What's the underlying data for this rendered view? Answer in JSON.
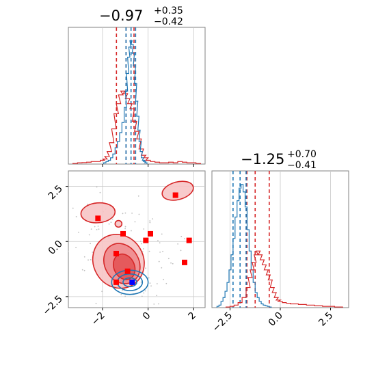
{
  "chart_data": {
    "type": "corner",
    "colors": {
      "red": "#d62728",
      "blue": "#1f77b4",
      "red_fill": "#f4b6b8",
      "marker_blue": "#0000ff",
      "marker_red": "#ff0000"
    },
    "grid": true,
    "panels": {
      "p1_hist": {
        "type": "histogram",
        "title": {
          "main": "−0.97",
          "sup": "+0.35",
          "sub": "−0.42"
        },
        "xlim": [
          -3.5,
          2.5
        ],
        "xticks": [
          -2,
          0,
          2
        ],
        "quantile_lines": {
          "red": [
            -1.39,
            -0.97,
            -0.62
          ],
          "blue": [
            -0.97,
            -0.75,
            -0.55
          ]
        },
        "series": [
          {
            "color": "red",
            "x": [
              -3.2,
              -3.0,
              -2.8,
              -2.6,
              -2.4,
              -2.2,
              -2.0,
              -1.9,
              -1.8,
              -1.7,
              -1.6,
              -1.5,
              -1.4,
              -1.3,
              -1.2,
              -1.1,
              -1.0,
              -0.9,
              -0.8,
              -0.7,
              -0.6,
              -0.5,
              -0.4,
              -0.3,
              -0.2,
              -0.1,
              0.0,
              0.2,
              0.4,
              0.6,
              0.8,
              1.0,
              1.2,
              1.4,
              1.6,
              1.8,
              2.0,
              2.2
            ],
            "y": [
              0.005,
              0.01,
              0.012,
              0.015,
              0.02,
              0.02,
              0.03,
              0.04,
              0.06,
              0.1,
              0.17,
              0.28,
              0.4,
              0.48,
              0.55,
              0.58,
              0.56,
              0.52,
              0.48,
              0.44,
              0.34,
              0.26,
              0.2,
              0.12,
              0.07,
              0.05,
              0.03,
              0.02,
              0.015,
              0.01,
              0.01,
              0.015,
              0.01,
              0.02,
              0.015,
              0.01,
              0.01,
              0.005
            ]
          },
          {
            "color": "blue",
            "x": [
              -1.9,
              -1.8,
              -1.7,
              -1.6,
              -1.5,
              -1.4,
              -1.3,
              -1.2,
              -1.1,
              -1.0,
              -0.95,
              -0.9,
              -0.85,
              -0.8,
              -0.75,
              -0.7,
              -0.65,
              -0.6,
              -0.55,
              -0.5,
              -0.45,
              -0.4,
              -0.35,
              -0.3,
              -0.25,
              -0.2,
              -0.15,
              -0.1
            ],
            "y": [
              0.01,
              0.02,
              0.03,
              0.05,
              0.08,
              0.13,
              0.18,
              0.25,
              0.33,
              0.45,
              0.58,
              0.72,
              0.85,
              0.93,
              0.98,
              0.95,
              0.88,
              0.78,
              0.64,
              0.5,
              0.38,
              0.27,
              0.18,
              0.1,
              0.05,
              0.03,
              0.02,
              0.01
            ]
          }
        ]
      },
      "p2_hist": {
        "type": "histogram",
        "title": {
          "main": "−1.25",
          "sup": "+0.70",
          "sub": "−0.41"
        },
        "xlim": [
          -3.4,
          3.4
        ],
        "xticks": [
          -2.5,
          0.0,
          2.5
        ],
        "xtick_labels": [
          "−2.5",
          "0.0",
          "2.5"
        ],
        "quantile_lines": {
          "red": [
            -1.66,
            -1.25,
            -0.55
          ],
          "blue": [
            -2.35,
            -2.0,
            -1.7
          ]
        },
        "series": [
          {
            "color": "blue",
            "x": [
              -3.1,
              -3.0,
              -2.9,
              -2.8,
              -2.7,
              -2.6,
              -2.5,
              -2.4,
              -2.3,
              -2.2,
              -2.1,
              -2.0,
              -1.9,
              -1.8,
              -1.7,
              -1.6,
              -1.5,
              -1.4,
              -1.3,
              -1.2,
              -1.1,
              -1.0,
              -0.9,
              -0.8,
              -0.7,
              -0.6,
              -0.5
            ],
            "y": [
              0.01,
              0.02,
              0.05,
              0.08,
              0.13,
              0.2,
              0.3,
              0.42,
              0.55,
              0.72,
              0.85,
              0.95,
              0.98,
              0.92,
              0.8,
              0.62,
              0.45,
              0.3,
              0.2,
              0.12,
              0.08,
              0.05,
              0.03,
              0.02,
              0.015,
              0.01,
              0.005
            ]
          },
          {
            "color": "red",
            "x": [
              -2.6,
              -2.4,
              -2.2,
              -2.0,
              -1.8,
              -1.6,
              -1.5,
              -1.4,
              -1.3,
              -1.2,
              -1.1,
              -1.0,
              -0.9,
              -0.8,
              -0.7,
              -0.6,
              -0.5,
              -0.4,
              -0.3,
              -0.2,
              -0.1,
              0.0,
              0.2,
              0.4,
              0.6,
              0.8,
              1.0,
              1.2,
              1.4,
              1.6,
              1.8,
              2.0,
              2.2,
              2.4,
              2.6,
              2.8,
              3.0
            ],
            "y": [
              0.005,
              0.01,
              0.02,
              0.04,
              0.08,
              0.16,
              0.24,
              0.3,
              0.36,
              0.42,
              0.45,
              0.42,
              0.38,
              0.34,
              0.3,
              0.26,
              0.22,
              0.16,
              0.12,
              0.08,
              0.06,
              0.05,
              0.04,
              0.035,
              0.03,
              0.03,
              0.025,
              0.025,
              0.02,
              0.02,
              0.015,
              0.015,
              0.01,
              0.01,
              0.01,
              0.005,
              0.005
            ]
          }
        ]
      },
      "p3_2d": {
        "type": "scatter_contour",
        "xlim": [
          -3.5,
          2.5
        ],
        "ylim": [
          -3.0,
          3.2
        ],
        "xticks": [
          -2,
          0,
          2
        ],
        "yticks": [
          -2.5,
          0.0,
          2.5
        ],
        "ytick_labels": [
          "−2.5",
          "0.0",
          "2.5"
        ],
        "contours_red": [
          {
            "level": 1,
            "cx": -1.3,
            "cy": -0.9,
            "rx": 1.1,
            "ry": 1.25,
            "rot": -30
          },
          {
            "level": 2,
            "cx": -1.15,
            "cy": -1.0,
            "rx": 0.75,
            "ry": 0.95,
            "rot": -30
          },
          {
            "level": 3,
            "cx": -1.05,
            "cy": -1.15,
            "rx": 0.45,
            "ry": 0.6,
            "rot": -25
          },
          {
            "level": 1,
            "cx": -2.2,
            "cy": 1.3,
            "rx": 0.75,
            "ry": 0.45,
            "rot": -5
          },
          {
            "level": 1,
            "cx": 1.3,
            "cy": 2.3,
            "rx": 0.7,
            "ry": 0.4,
            "rot": -15
          },
          {
            "level": 1,
            "cx": -1.3,
            "cy": 0.8,
            "rx": 0.15,
            "ry": 0.15,
            "rot": 0
          }
        ],
        "contours_blue": [
          {
            "cx": -0.8,
            "cy": -1.85,
            "rx": 0.8,
            "ry": 0.55,
            "rot": 0
          },
          {
            "cx": -0.8,
            "cy": -1.85,
            "rx": 0.55,
            "ry": 0.38,
            "rot": 0
          },
          {
            "cx": -0.8,
            "cy": -1.85,
            "rx": 0.3,
            "ry": 0.2,
            "rot": 0
          }
        ],
        "markers_red": [
          [
            -2.2,
            1.05
          ],
          [
            -1.1,
            0.35
          ],
          [
            0.1,
            0.35
          ],
          [
            -0.1,
            0.05
          ],
          [
            1.8,
            0.05
          ],
          [
            -1.4,
            -0.55
          ],
          [
            1.6,
            -0.95
          ],
          [
            -0.9,
            -1.35
          ],
          [
            -1.4,
            -1.85
          ],
          [
            1.2,
            2.1
          ]
        ],
        "markers_blue": [
          [
            -0.7,
            -1.85
          ]
        ]
      }
    }
  }
}
